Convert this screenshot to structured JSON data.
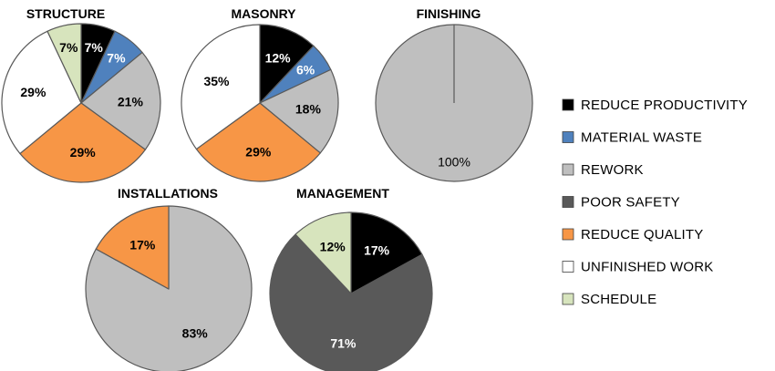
{
  "legend": [
    {
      "key": "reduce_productivity",
      "label": "REDUCE PRODUCTIVITY",
      "color": "#000000"
    },
    {
      "key": "material_waste",
      "label": "MATERIAL WASTE",
      "color": "#4F81BD"
    },
    {
      "key": "rework",
      "label": "REWORK",
      "color": "#BFBFBF"
    },
    {
      "key": "poor_safety",
      "label": "POOR SAFETY",
      "color": "#595959"
    },
    {
      "key": "reduce_quality",
      "label": "REDUCE QUALITY",
      "color": "#F79646"
    },
    {
      "key": "unfinished_work",
      "label": "UNFINISHED WORK",
      "color": "#FFFFFF"
    },
    {
      "key": "schedule",
      "label": "SCHEDULE",
      "color": "#D7E4BD"
    }
  ],
  "chart_data": [
    {
      "type": "pie",
      "title": "STRUCTURE",
      "slices": [
        {
          "category": "reduce_productivity",
          "value": 7,
          "label": "7%"
        },
        {
          "category": "material_waste",
          "value": 7,
          "label": "7%"
        },
        {
          "category": "rework",
          "value": 21,
          "label": "21%"
        },
        {
          "category": "reduce_quality",
          "value": 29,
          "label": "29%"
        },
        {
          "category": "unfinished_work",
          "value": 29,
          "label": "29%"
        },
        {
          "category": "schedule",
          "value": 7,
          "label": "7%"
        }
      ]
    },
    {
      "type": "pie",
      "title": "MASONRY",
      "slices": [
        {
          "category": "reduce_productivity",
          "value": 12,
          "label": "12%"
        },
        {
          "category": "material_waste",
          "value": 6,
          "label": "6%"
        },
        {
          "category": "rework",
          "value": 18,
          "label": "18%"
        },
        {
          "category": "reduce_quality",
          "value": 29,
          "label": "29%"
        },
        {
          "category": "unfinished_work",
          "value": 35,
          "label": "35%"
        }
      ]
    },
    {
      "type": "pie",
      "title": "FINISHING",
      "slices": [
        {
          "category": "rework",
          "value": 100,
          "label": "100%"
        }
      ]
    },
    {
      "type": "pie",
      "title": "INSTALLATIONS",
      "slices": [
        {
          "category": "rework",
          "value": 83,
          "label": "83%"
        },
        {
          "category": "reduce_quality",
          "value": 17,
          "label": "17%"
        }
      ]
    },
    {
      "type": "pie",
      "title": "MANAGEMENT",
      "slices": [
        {
          "category": "reduce_productivity",
          "value": 17,
          "label": "17%"
        },
        {
          "category": "poor_safety",
          "value": 71,
          "label": "71%"
        },
        {
          "category": "schedule",
          "value": 12,
          "label": "12%"
        }
      ]
    }
  ]
}
